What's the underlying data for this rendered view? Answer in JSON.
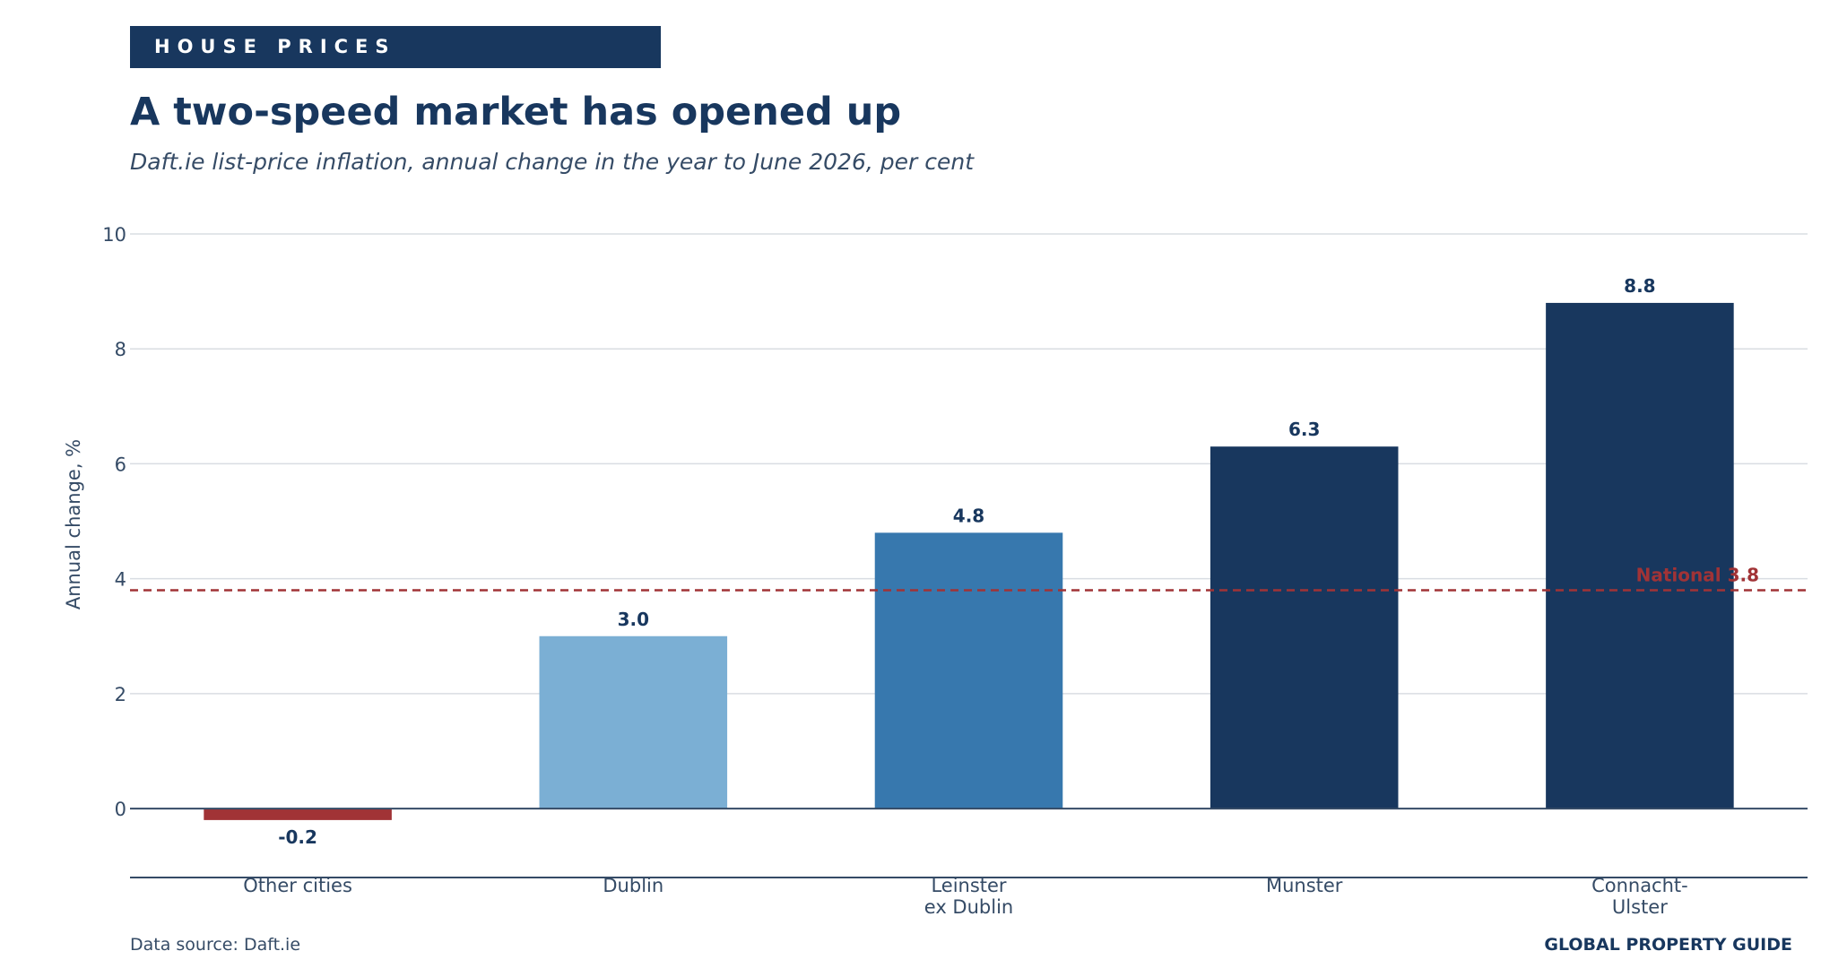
{
  "banner": "HOUSE PRICES",
  "title": "A two-speed market has opened up",
  "subtitle": "Daft.ie list-price inflation, annual change in the year to June 2026, per cent",
  "source": "Data source: Daft.ie",
  "brand": "GLOBAL PROPERTY GUIDE",
  "colors": {
    "navy": "#18375e",
    "mid_blue": "#3778ae",
    "light_blue": "#7bafd4",
    "red": "#a13336",
    "grid": "#d9dde2",
    "text": "#354b66"
  },
  "chart_data": {
    "type": "bar",
    "categories": [
      [
        "Other cities"
      ],
      [
        "Dublin"
      ],
      [
        "Leinster",
        "ex Dublin"
      ],
      [
        "Munster"
      ],
      [
        "Connacht-",
        "Ulster"
      ]
    ],
    "values": [
      -0.2,
      3.0,
      4.8,
      6.3,
      8.8
    ],
    "value_labels": [
      "-0.2",
      "3.0",
      "4.8",
      "6.3",
      "8.8"
    ],
    "bar_colors": [
      "#a13336",
      "#7bafd4",
      "#3778ae",
      "#18375e",
      "#18375e"
    ],
    "ylabel": "Annual change, %",
    "ylim": [
      -1.2,
      10
    ],
    "yticks": [
      0,
      2,
      4,
      6,
      8,
      10
    ],
    "grid": true,
    "reference_line": {
      "label": "National 3.8",
      "value": 3.8,
      "color": "#a13336",
      "style": "dashed"
    }
  }
}
